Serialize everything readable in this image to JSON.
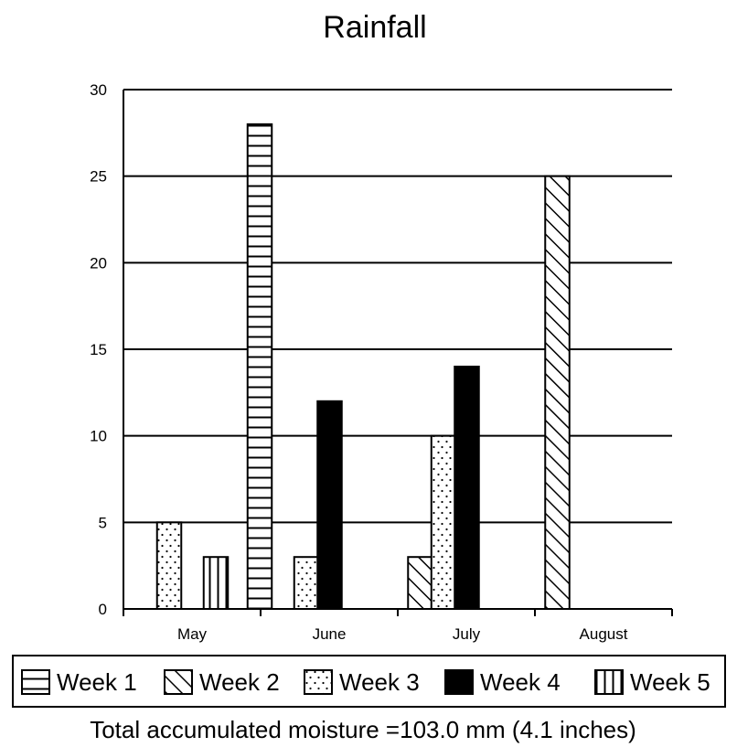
{
  "chart_data": {
    "type": "bar",
    "title": "Rainfall",
    "xlabel": "",
    "ylabel": "",
    "ylim": [
      0,
      30
    ],
    "yticks": [
      0,
      5,
      10,
      15,
      20,
      25,
      30
    ],
    "grid": true,
    "legend_position": "bottom",
    "categories": [
      "May",
      "June",
      "July",
      "August"
    ],
    "series": [
      {
        "name": "Week 1",
        "pattern": "horizontal-lines",
        "values": [
          null,
          28,
          null,
          null
        ]
      },
      {
        "name": "Week 2",
        "pattern": "diagonal-hatch",
        "values": [
          null,
          null,
          3,
          25
        ]
      },
      {
        "name": "Week 3",
        "pattern": "dots",
        "values": [
          5,
          3,
          10,
          null
        ]
      },
      {
        "name": "Week 4",
        "pattern": "solid-black",
        "values": [
          null,
          12,
          14,
          null
        ]
      },
      {
        "name": "Week 5",
        "pattern": "vertical-lines",
        "values": [
          3,
          null,
          null,
          null
        ]
      }
    ],
    "footnote": "Total accumulated moisture =103.0 mm (4.1 inches)"
  }
}
